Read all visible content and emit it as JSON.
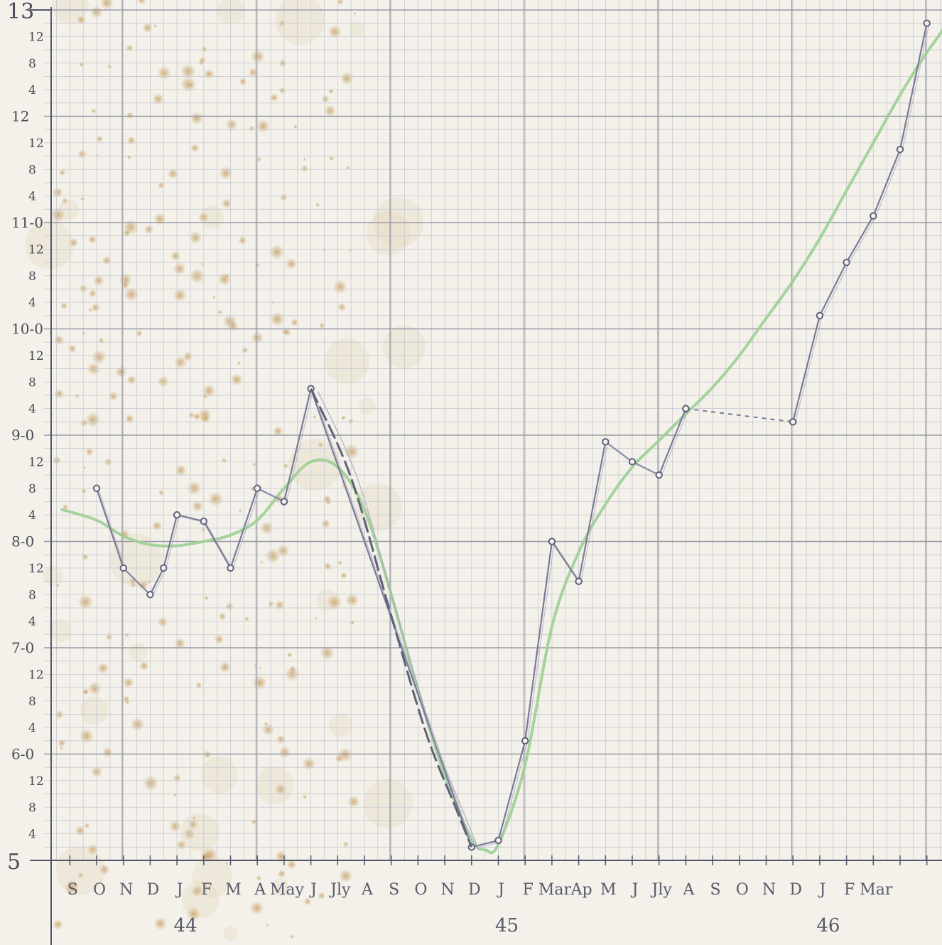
{
  "chart_data": {
    "type": "line",
    "title": "",
    "xlabel": "",
    "ylabel": "",
    "ylim": [
      5,
      13
    ],
    "y_unit_note": "each major unit divided into 16ths; minor labels at 4, 8, 12",
    "y_major_labels": [
      "5",
      "6-0",
      "7-0",
      "8-0",
      "9-0",
      "10-0",
      "11-0",
      "12",
      "13"
    ],
    "y_minor_labels": [
      "4",
      "8",
      "12"
    ],
    "month_labels": [
      "S",
      "O",
      "N",
      "D",
      "J",
      "F",
      "M",
      "A",
      "May",
      "J",
      "Jly",
      "A",
      "S",
      "O",
      "N",
      "D",
      "J",
      "F",
      "Mar",
      "Ap",
      "M",
      "J",
      "Jly",
      "A",
      "S",
      "O",
      "N",
      "D",
      "J",
      "F",
      "Mar"
    ],
    "year_labels": [
      {
        "label": "44",
        "month_index": 4
      },
      {
        "label": "45",
        "month_index": 16
      },
      {
        "label": "46",
        "month_index": 28
      }
    ],
    "grid": true,
    "series": [
      {
        "name": "",
        "color": "#7a7a96",
        "points": [
          {
            "x": 0,
            "y": 8.5
          },
          {
            "x": 1,
            "y": 7.75
          },
          {
            "x": 2,
            "y": 7.5
          },
          {
            "x": 2.5,
            "y": 7.75
          },
          {
            "x": 3,
            "y": 8.25
          },
          {
            "x": 4,
            "y": 8.19
          },
          {
            "x": 5,
            "y": 7.75
          },
          {
            "x": 6,
            "y": 8.5
          },
          {
            "x": 7,
            "y": 8.375
          },
          {
            "x": 8,
            "y": 9.4375
          },
          {
            "x": 14,
            "y": 5.125
          },
          {
            "x": 15,
            "y": 5.1875
          },
          {
            "x": 16,
            "y": 6.125
          },
          {
            "x": 17,
            "y": 8.0
          },
          {
            "x": 18,
            "y": 7.625
          },
          {
            "x": 19,
            "y": 8.9375
          },
          {
            "x": 20,
            "y": 8.75
          },
          {
            "x": 21,
            "y": 8.625
          },
          {
            "x": 22,
            "y": 9.25
          }
        ]
      },
      {
        "name": "",
        "color": "#7a7a96",
        "style": "dashed",
        "points": [
          {
            "x": 22,
            "y": 9.25
          },
          {
            "x": 26,
            "y": 9.125
          }
        ]
      },
      {
        "name": "",
        "color": "#7a7a96",
        "points": [
          {
            "x": 26,
            "y": 9.125
          },
          {
            "x": 27,
            "y": 10.125
          },
          {
            "x": 28,
            "y": 10.625
          },
          {
            "x": 29,
            "y": 11.0625
          },
          {
            "x": 30,
            "y": 11.6875
          },
          {
            "x": 31,
            "y": 12.875
          }
        ]
      },
      {
        "name": "",
        "color": "#9ccf94",
        "style": "smooth",
        "points": [
          {
            "x": -1.3,
            "y": 8.3
          },
          {
            "x": 0,
            "y": 8.2
          },
          {
            "x": 1,
            "y": 8.05
          },
          {
            "x": 2,
            "y": 7.97
          },
          {
            "x": 3,
            "y": 7.96
          },
          {
            "x": 4,
            "y": 8.0
          },
          {
            "x": 5,
            "y": 8.06
          },
          {
            "x": 6,
            "y": 8.2
          },
          {
            "x": 7,
            "y": 8.5
          },
          {
            "x": 8,
            "y": 8.75
          },
          {
            "x": 9,
            "y": 8.7
          },
          {
            "x": 10,
            "y": 8.3
          },
          {
            "x": 11,
            "y": 7.5
          },
          {
            "x": 12,
            "y": 6.6
          },
          {
            "x": 13,
            "y": 5.8
          },
          {
            "x": 14,
            "y": 5.2
          },
          {
            "x": 14.5,
            "y": 5.1
          },
          {
            "x": 15,
            "y": 5.15
          },
          {
            "x": 16,
            "y": 5.9
          },
          {
            "x": 17,
            "y": 7.2
          },
          {
            "x": 18,
            "y": 7.9
          },
          {
            "x": 19,
            "y": 8.35
          },
          {
            "x": 20,
            "y": 8.7
          },
          {
            "x": 21,
            "y": 8.95
          },
          {
            "x": 22,
            "y": 9.2
          },
          {
            "x": 23,
            "y": 9.45
          },
          {
            "x": 24,
            "y": 9.75
          },
          {
            "x": 25,
            "y": 10.1
          },
          {
            "x": 26,
            "y": 10.45
          },
          {
            "x": 27,
            "y": 10.85
          },
          {
            "x": 28,
            "y": 11.3
          },
          {
            "x": 29,
            "y": 11.75
          },
          {
            "x": 30,
            "y": 12.2
          },
          {
            "x": 31,
            "y": 12.6
          },
          {
            "x": 32.3,
            "y": 13.05
          }
        ]
      }
    ]
  }
}
